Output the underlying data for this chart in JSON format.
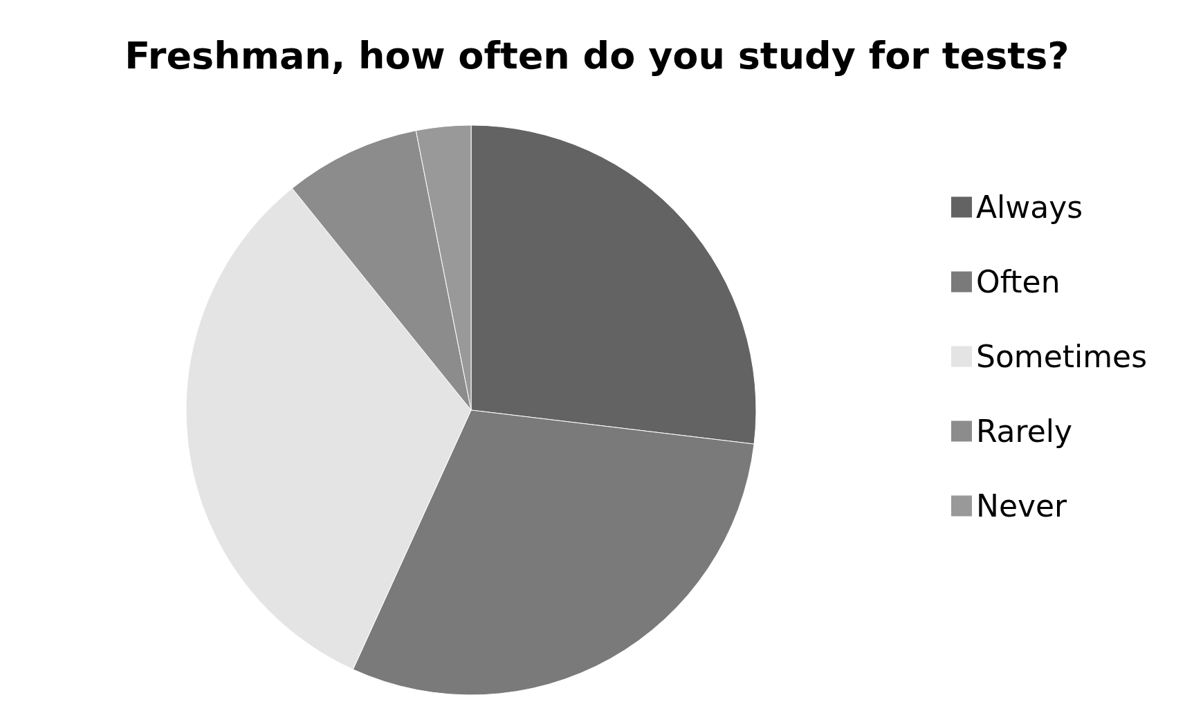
{
  "chart_data": {
    "type": "pie",
    "title": "Freshman, how often do you study for tests?",
    "categories": [
      "Always",
      "Often",
      "Sometimes",
      "Rarely",
      "Never"
    ],
    "values": [
      26.9,
      29.9,
      32.4,
      7.7,
      3.1
    ],
    "colors": [
      "#636363",
      "#7a7a7a",
      "#e4e4e4",
      "#8c8c8c",
      "#999999"
    ],
    "legend": "right"
  }
}
